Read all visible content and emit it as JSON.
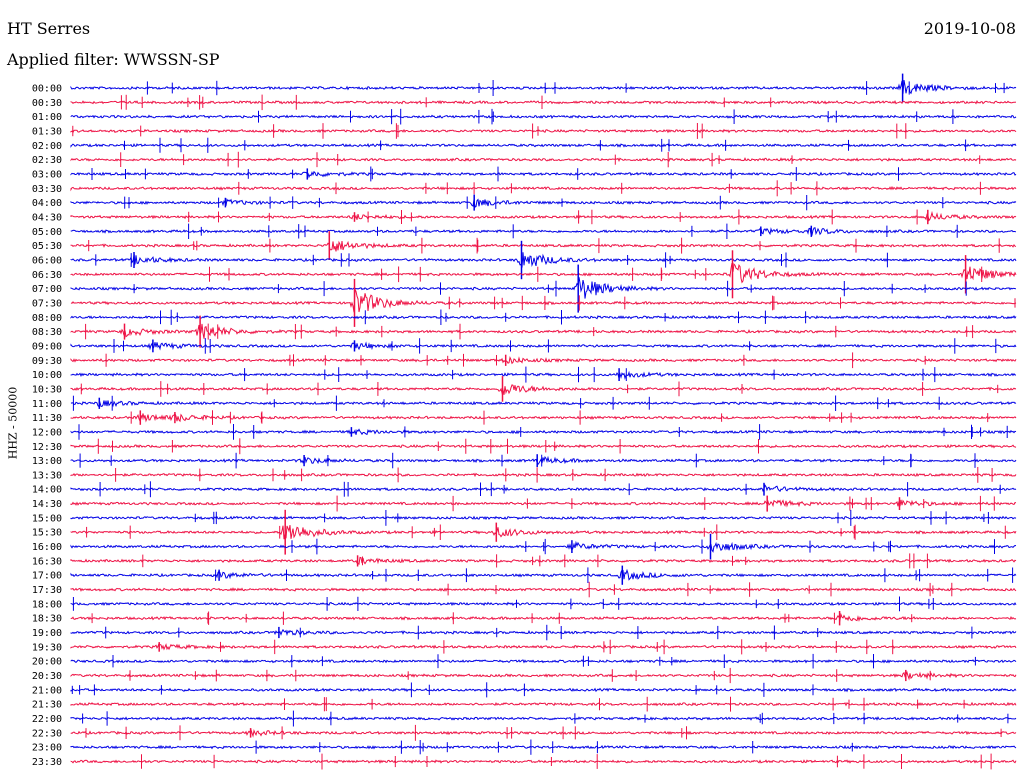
{
  "header": {
    "station": "HT Serres",
    "date": "2019-10-08",
    "filter_label": "Applied filter: WWSSN-SP"
  },
  "axis": {
    "ylabel": "HHZ - 50000"
  },
  "colors": {
    "even_trace": "#0000e6",
    "odd_trace": "#ee1144"
  },
  "chart_data": {
    "type": "line",
    "title": "HT Serres",
    "subtitle": "Applied filter: WWSSN-SP",
    "ylabel": "HHZ - 50000",
    "xlabel": "",
    "row_labels": [
      "00:00",
      "00:30",
      "01:00",
      "01:30",
      "02:00",
      "02:30",
      "03:00",
      "03:30",
      "04:00",
      "04:30",
      "05:00",
      "05:30",
      "06:00",
      "06:30",
      "07:00",
      "07:30",
      "08:00",
      "08:30",
      "09:00",
      "09:30",
      "10:00",
      "10:30",
      "11:00",
      "11:30",
      "12:00",
      "12:30",
      "13:00",
      "13:30",
      "14:00",
      "14:30",
      "15:00",
      "15:30",
      "16:00",
      "16:30",
      "17:00",
      "17:30",
      "18:00",
      "18:30",
      "19:00",
      "19:30",
      "20:00",
      "20:30",
      "21:00",
      "21:30",
      "22:00",
      "22:30",
      "23:00",
      "23:30"
    ],
    "row_minutes": 30,
    "events": [
      {
        "row": "00:00",
        "minute": 26.4,
        "amplitude": 0.9
      },
      {
        "row": "03:00",
        "minute": 7.5,
        "amplitude": 0.35
      },
      {
        "row": "04:00",
        "minute": 4.9,
        "amplitude": 0.3
      },
      {
        "row": "04:00",
        "minute": 12.8,
        "amplitude": 0.5
      },
      {
        "row": "04:30",
        "minute": 9.0,
        "amplitude": 0.3
      },
      {
        "row": "04:30",
        "minute": 27.2,
        "amplitude": 0.45
      },
      {
        "row": "05:00",
        "minute": 21.9,
        "amplitude": 0.3
      },
      {
        "row": "05:00",
        "minute": 23.5,
        "amplitude": 0.35
      },
      {
        "row": "05:30",
        "minute": 8.2,
        "amplitude": 0.9
      },
      {
        "row": "06:00",
        "minute": 2.0,
        "amplitude": 0.5
      },
      {
        "row": "06:00",
        "minute": 14.3,
        "amplitude": 1.2
      },
      {
        "row": "06:30",
        "minute": 21.0,
        "amplitude": 1.5
      },
      {
        "row": "06:30",
        "minute": 28.4,
        "amplitude": 1.2
      },
      {
        "row": "07:00",
        "minute": 16.1,
        "amplitude": 1.6
      },
      {
        "row": "07:30",
        "minute": 9.0,
        "amplitude": 1.8
      },
      {
        "row": "08:30",
        "minute": 1.7,
        "amplitude": 0.5
      },
      {
        "row": "08:30",
        "minute": 4.1,
        "amplitude": 1.0
      },
      {
        "row": "09:00",
        "minute": 2.6,
        "amplitude": 0.4
      },
      {
        "row": "09:00",
        "minute": 9.0,
        "amplitude": 0.35
      },
      {
        "row": "09:30",
        "minute": 13.8,
        "amplitude": 0.35
      },
      {
        "row": "10:00",
        "minute": 17.4,
        "amplitude": 0.4
      },
      {
        "row": "10:30",
        "minute": 13.7,
        "amplitude": 0.8
      },
      {
        "row": "11:00",
        "minute": 0.9,
        "amplitude": 0.35
      },
      {
        "row": "11:30",
        "minute": 2.2,
        "amplitude": 0.45
      },
      {
        "row": "11:30",
        "minute": 3.3,
        "amplitude": 0.35
      },
      {
        "row": "12:00",
        "minute": 8.9,
        "amplitude": 0.3
      },
      {
        "row": "13:00",
        "minute": 7.4,
        "amplitude": 0.35
      },
      {
        "row": "13:00",
        "minute": 14.8,
        "amplitude": 0.4
      },
      {
        "row": "14:00",
        "minute": 22.0,
        "amplitude": 0.4
      },
      {
        "row": "14:30",
        "minute": 22.1,
        "amplitude": 0.5
      },
      {
        "row": "14:30",
        "minute": 26.3,
        "amplitude": 0.4
      },
      {
        "row": "15:30",
        "minute": 6.8,
        "amplitude": 1.4
      },
      {
        "row": "15:30",
        "minute": 13.5,
        "amplitude": 0.6
      },
      {
        "row": "16:00",
        "minute": 15.9,
        "amplitude": 0.4
      },
      {
        "row": "16:00",
        "minute": 20.3,
        "amplitude": 0.8
      },
      {
        "row": "16:30",
        "minute": 9.1,
        "amplitude": 0.35
      },
      {
        "row": "17:00",
        "minute": 4.7,
        "amplitude": 0.35
      },
      {
        "row": "17:00",
        "minute": 17.5,
        "amplitude": 0.6
      },
      {
        "row": "18:30",
        "minute": 24.4,
        "amplitude": 0.45
      },
      {
        "row": "19:00",
        "minute": 6.6,
        "amplitude": 0.35
      },
      {
        "row": "19:30",
        "minute": 2.8,
        "amplitude": 0.3
      },
      {
        "row": "20:30",
        "minute": 26.5,
        "amplitude": 0.35
      },
      {
        "row": "22:30",
        "minute": 5.7,
        "amplitude": 0.3
      }
    ]
  }
}
